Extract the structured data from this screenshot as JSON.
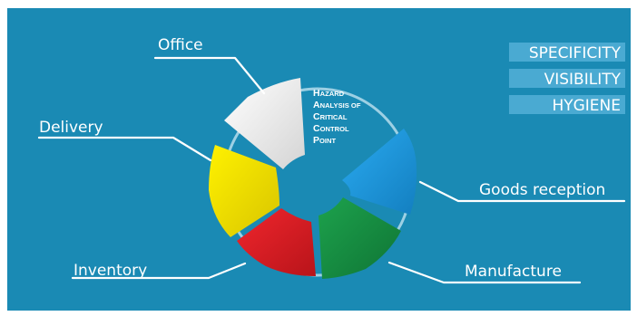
{
  "labels": {
    "office": "Office",
    "delivery": "Delivery",
    "inventory": "Inventory",
    "manufacture": "Manufacture",
    "goods_reception": "Goods reception"
  },
  "title": {
    "line1": {
      "initial": "H",
      "rest": "AZARD"
    },
    "line2": {
      "initial": "A",
      "rest": "NALYSIS OF"
    },
    "line3": {
      "initial": "C",
      "rest": "RITICAL"
    },
    "line4": {
      "initial": "C",
      "rest": "ONTROL"
    },
    "line5": {
      "initial": "P",
      "rest": "OINT"
    }
  },
  "tags": [
    "SPECIFICITY",
    "VISIBILITY",
    "HYGIENE"
  ],
  "colors": {
    "background": "#1a8ab4",
    "office": "#ffffff",
    "delivery": "#f2e400",
    "inventory": "#e31f26",
    "manufacture": "#179445",
    "goods_reception": "#1d9fe0"
  }
}
